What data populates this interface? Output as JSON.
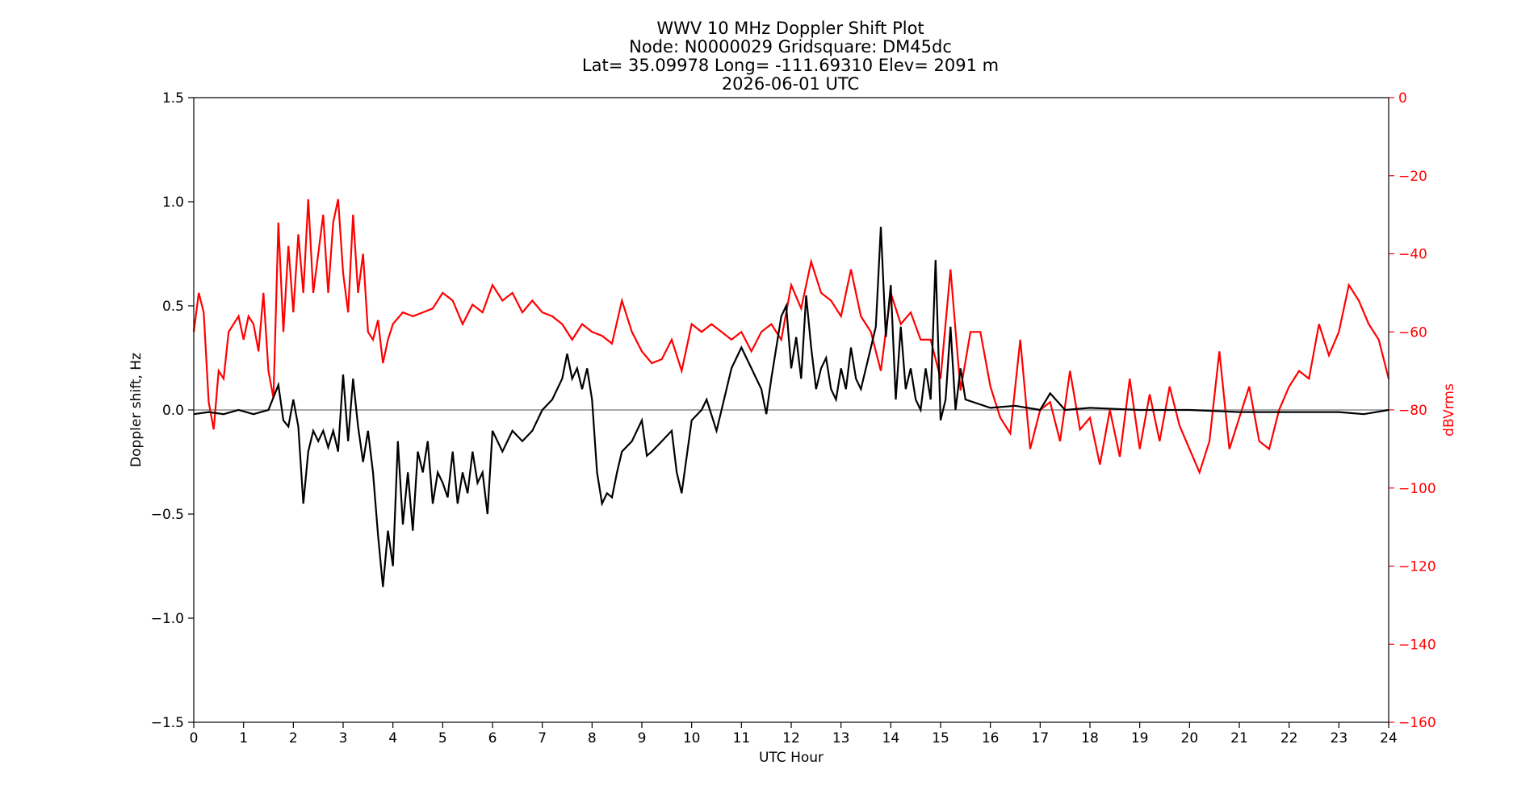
{
  "chart_data": {
    "type": "line",
    "title": [
      "WWV 10 MHz Doppler Shift Plot",
      "Node:  N0000029     Gridsquare:  DM45dc",
      "Lat= 35.09978    Long= -111.69310    Elev= 2091 m",
      "2026-06-01  UTC"
    ],
    "xlabel": "UTC Hour",
    "ylabel_left": "Doppler shift, Hz",
    "ylabel_right": "dBVrms",
    "xlim": [
      0,
      24
    ],
    "ylim_left": [
      -1.5,
      1.5
    ],
    "ylim_right": [
      -160,
      0
    ],
    "x_ticks": [
      "0",
      "1",
      "2",
      "3",
      "4",
      "5",
      "6",
      "7",
      "8",
      "9",
      "10",
      "11",
      "12",
      "13",
      "14",
      "15",
      "16",
      "17",
      "18",
      "19",
      "20",
      "21",
      "22",
      "23",
      "24"
    ],
    "y_ticks_left": [
      "1.5",
      "1.0",
      "0.5",
      "0.0",
      "−0.5",
      "−1.0",
      "−1.5"
    ],
    "y_ticks_right": [
      "0",
      "−20",
      "−40",
      "−60",
      "−80",
      "−100",
      "−120",
      "−140",
      "−160"
    ],
    "grid": false,
    "zero_line": true,
    "colors": {
      "doppler": "#000000",
      "power": "#ff0000",
      "zero_line": "#8c8c8c"
    },
    "series": [
      {
        "axis": "left",
        "color": "#000000",
        "x": [
          0,
          0.3,
          0.6,
          0.9,
          1.2,
          1.5,
          1.7,
          1.8,
          1.9,
          2.0,
          2.1,
          2.2,
          2.3,
          2.4,
          2.5,
          2.6,
          2.7,
          2.8,
          2.9,
          3.0,
          3.1,
          3.2,
          3.3,
          3.4,
          3.5,
          3.6,
          3.7,
          3.8,
          3.9,
          4.0,
          4.1,
          4.2,
          4.3,
          4.4,
          4.5,
          4.6,
          4.7,
          4.8,
          4.9,
          5.0,
          5.1,
          5.2,
          5.3,
          5.4,
          5.5,
          5.6,
          5.7,
          5.8,
          5.9,
          6.0,
          6.2,
          6.4,
          6.6,
          6.8,
          7.0,
          7.2,
          7.4,
          7.5,
          7.6,
          7.7,
          7.8,
          7.9,
          8.0,
          8.1,
          8.2,
          8.3,
          8.4,
          8.5,
          8.6,
          8.8,
          9.0,
          9.1,
          9.2,
          9.4,
          9.6,
          9.7,
          9.8,
          10.0,
          10.2,
          10.3,
          10.5,
          10.6,
          10.8,
          11.0,
          11.2,
          11.4,
          11.5,
          11.6,
          11.8,
          11.9,
          12.0,
          12.1,
          12.2,
          12.3,
          12.4,
          12.5,
          12.6,
          12.7,
          12.8,
          12.9,
          13.0,
          13.1,
          13.2,
          13.3,
          13.4,
          13.5,
          13.6,
          13.7,
          13.8,
          13.9,
          14.0,
          14.1,
          14.2,
          14.3,
          14.4,
          14.5,
          14.6,
          14.7,
          14.8,
          14.9,
          15.0,
          15.1,
          15.2,
          15.3,
          15.4,
          15.5,
          16.0,
          16.5,
          17.0,
          17.2,
          17.5,
          18.0,
          19.0,
          20.0,
          21.0,
          22.0,
          23.0,
          23.5,
          24.0
        ],
        "y": [
          -0.02,
          -0.01,
          -0.02,
          0.0,
          -0.02,
          0.0,
          0.12,
          -0.05,
          -0.08,
          0.05,
          -0.08,
          -0.45,
          -0.2,
          -0.1,
          -0.15,
          -0.1,
          -0.18,
          -0.1,
          -0.2,
          0.17,
          -0.15,
          0.15,
          -0.08,
          -0.25,
          -0.1,
          -0.3,
          -0.6,
          -0.85,
          -0.58,
          -0.75,
          -0.15,
          -0.55,
          -0.3,
          -0.58,
          -0.2,
          -0.3,
          -0.15,
          -0.45,
          -0.3,
          -0.35,
          -0.42,
          -0.2,
          -0.45,
          -0.3,
          -0.4,
          -0.2,
          -0.35,
          -0.3,
          -0.5,
          -0.1,
          -0.2,
          -0.1,
          -0.15,
          -0.1,
          0.0,
          0.05,
          0.15,
          0.27,
          0.15,
          0.2,
          0.1,
          0.2,
          0.05,
          -0.3,
          -0.45,
          -0.4,
          -0.42,
          -0.3,
          -0.2,
          -0.15,
          -0.05,
          -0.22,
          -0.2,
          -0.15,
          -0.1,
          -0.3,
          -0.4,
          -0.05,
          0.0,
          0.05,
          -0.1,
          0.0,
          0.2,
          0.3,
          0.2,
          0.1,
          -0.02,
          0.15,
          0.45,
          0.5,
          0.2,
          0.35,
          0.15,
          0.55,
          0.3,
          0.1,
          0.2,
          0.25,
          0.1,
          0.05,
          0.2,
          0.1,
          0.3,
          0.15,
          0.1,
          0.2,
          0.3,
          0.4,
          0.88,
          0.35,
          0.6,
          0.05,
          0.4,
          0.1,
          0.2,
          0.05,
          0.0,
          0.2,
          0.05,
          0.72,
          -0.05,
          0.05,
          0.4,
          0.0,
          0.2,
          0.05,
          0.01,
          0.02,
          0.0,
          0.08,
          0.0,
          0.01,
          0.0,
          0.0,
          -0.01,
          -0.01,
          -0.01,
          -0.02,
          0.0
        ]
      },
      {
        "axis": "right",
        "color": "#ff0000",
        "x": [
          0,
          0.1,
          0.2,
          0.3,
          0.4,
          0.5,
          0.6,
          0.7,
          0.8,
          0.9,
          1.0,
          1.1,
          1.2,
          1.3,
          1.4,
          1.5,
          1.6,
          1.7,
          1.8,
          1.9,
          2.0,
          2.1,
          2.2,
          2.3,
          2.4,
          2.5,
          2.6,
          2.7,
          2.8,
          2.9,
          3.0,
          3.1,
          3.2,
          3.3,
          3.4,
          3.5,
          3.6,
          3.7,
          3.8,
          3.9,
          4.0,
          4.2,
          4.4,
          4.6,
          4.8,
          5.0,
          5.2,
          5.4,
          5.6,
          5.8,
          6.0,
          6.2,
          6.4,
          6.6,
          6.8,
          7.0,
          7.2,
          7.4,
          7.6,
          7.8,
          8.0,
          8.2,
          8.4,
          8.6,
          8.8,
          9.0,
          9.2,
          9.4,
          9.6,
          9.8,
          10.0,
          10.2,
          10.4,
          10.6,
          10.8,
          11.0,
          11.2,
          11.4,
          11.6,
          11.8,
          12.0,
          12.2,
          12.4,
          12.6,
          12.8,
          13.0,
          13.2,
          13.4,
          13.6,
          13.8,
          14.0,
          14.2,
          14.4,
          14.6,
          14.8,
          15.0,
          15.2,
          15.4,
          15.6,
          15.8,
          16.0,
          16.2,
          16.4,
          16.6,
          16.8,
          17.0,
          17.2,
          17.4,
          17.6,
          17.8,
          18.0,
          18.2,
          18.4,
          18.6,
          18.8,
          19.0,
          19.2,
          19.4,
          19.6,
          19.8,
          20.0,
          20.2,
          20.4,
          20.6,
          20.8,
          21.0,
          21.2,
          21.4,
          21.6,
          21.8,
          22.0,
          22.2,
          22.4,
          22.6,
          22.8,
          23.0,
          23.2,
          23.4,
          23.6,
          23.8,
          24.0
        ],
        "y": [
          -60,
          -50,
          -55,
          -78,
          -85,
          -70,
          -72,
          -60,
          -58,
          -56,
          -62,
          -56,
          -58,
          -65,
          -50,
          -70,
          -77,
          -32,
          -60,
          -38,
          -55,
          -35,
          -50,
          -26,
          -50,
          -40,
          -30,
          -50,
          -32,
          -26,
          -45,
          -55,
          -30,
          -50,
          -40,
          -60,
          -62,
          -57,
          -68,
          -62,
          -58,
          -55,
          -56,
          -55,
          -54,
          -50,
          -52,
          -58,
          -53,
          -55,
          -48,
          -52,
          -50,
          -55,
          -52,
          -55,
          -56,
          -58,
          -62,
          -58,
          -60,
          -61,
          -63,
          -52,
          -60,
          -65,
          -68,
          -67,
          -62,
          -70,
          -58,
          -60,
          -58,
          -60,
          -62,
          -60,
          -65,
          -60,
          -58,
          -62,
          -48,
          -54,
          -42,
          -50,
          -52,
          -56,
          -44,
          -56,
          -60,
          -70,
          -50,
          -58,
          -55,
          -62,
          -62,
          -72,
          -44,
          -75,
          -60,
          -60,
          -74,
          -82,
          -86,
          -62,
          -90,
          -80,
          -78,
          -88,
          -70,
          -85,
          -82,
          -94,
          -80,
          -92,
          -72,
          -90,
          -76,
          -88,
          -74,
          -84,
          -90,
          -96,
          -88,
          -65,
          -90,
          -82,
          -74,
          -88,
          -90,
          -80,
          -74,
          -70,
          -72,
          -58,
          -66,
          -60,
          -48,
          -52,
          -58,
          -62,
          -72
        ]
      }
    ]
  }
}
